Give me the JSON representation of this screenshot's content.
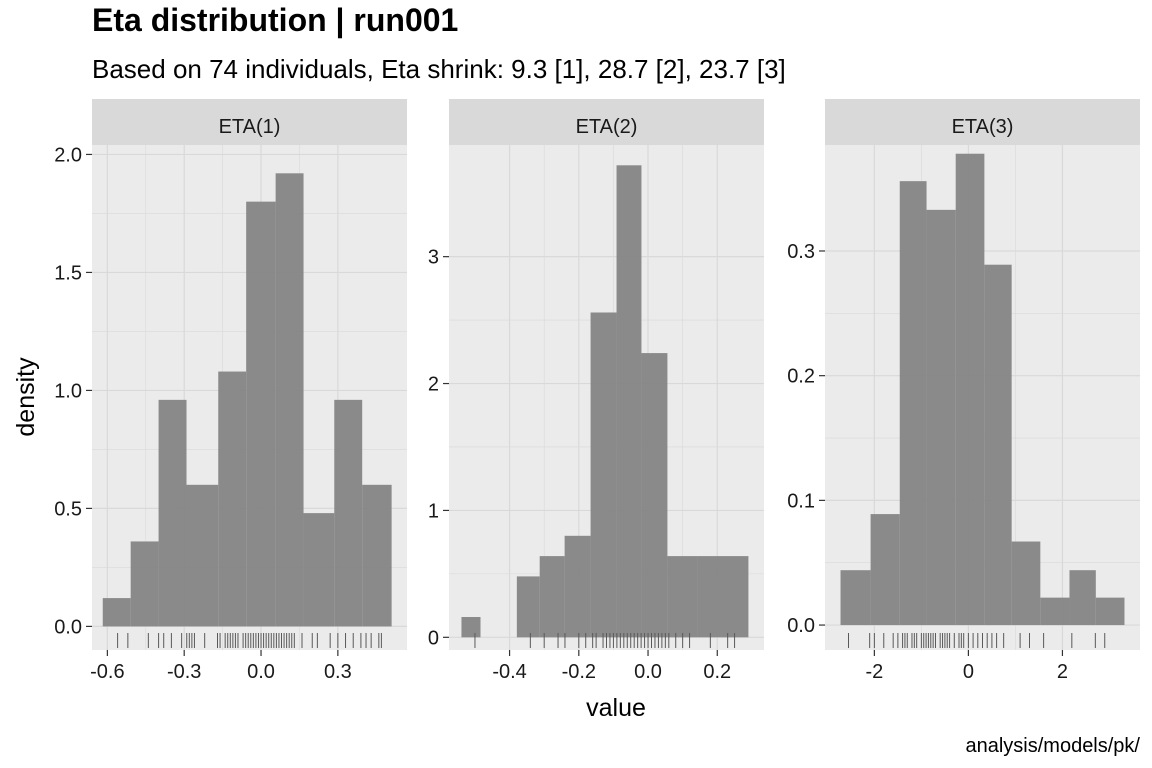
{
  "chart_data": {
    "type": "histogram",
    "title": "Eta distribution | run001",
    "subtitle": "Based on 74 individuals, Eta shrink: 9.3 [1], 28.7 [2], 23.7 [3]",
    "caption": "analysis/models/pk/",
    "xlabel": "value",
    "ylabel": "density",
    "grid": true,
    "colors": {
      "panel_bg": "#ebebeb",
      "grid": "#d9d9d9",
      "strip_bg": "#d9d9d9",
      "bar": "#808080",
      "rug": "#595959"
    },
    "facets": [
      {
        "name": "ETA(1)",
        "xlim": [
          -0.66,
          0.57
        ],
        "ylim": [
          -0.1,
          2.04
        ],
        "x_ticks": [
          -0.6,
          -0.3,
          0.0,
          0.3
        ],
        "x_tick_labels": [
          "-0.6",
          "-0.3",
          "0.0",
          "0.3"
        ],
        "y_ticks": [
          0.0,
          0.5,
          1.0,
          1.5,
          2.0
        ],
        "y_tick_labels": [
          "0.0",
          "0.5",
          "1.0",
          "1.5",
          "2.0"
        ],
        "bins": [
          {
            "x0": -0.618,
            "x1": -0.509,
            "density": 0.12
          },
          {
            "x0": -0.509,
            "x1": -0.4,
            "density": 0.36
          },
          {
            "x0": -0.4,
            "x1": -0.291,
            "density": 0.96
          },
          {
            "x0": -0.291,
            "x1": -0.167,
            "density": 0.6
          },
          {
            "x0": -0.167,
            "x1": -0.058,
            "density": 1.08
          },
          {
            "x0": -0.058,
            "x1": 0.057,
            "density": 1.8
          },
          {
            "x0": 0.057,
            "x1": 0.166,
            "density": 1.92
          },
          {
            "x0": 0.166,
            "x1": 0.286,
            "density": 0.48
          },
          {
            "x0": 0.286,
            "x1": 0.395,
            "density": 0.96
          },
          {
            "x0": 0.395,
            "x1": 0.51,
            "density": 0.6
          }
        ],
        "rug": [
          -0.56,
          -0.52,
          -0.44,
          -0.4,
          -0.38,
          -0.35,
          -0.31,
          -0.29,
          -0.28,
          -0.27,
          -0.26,
          -0.22,
          -0.17,
          -0.16,
          -0.14,
          -0.13,
          -0.12,
          -0.11,
          -0.1,
          -0.09,
          -0.07,
          -0.06,
          -0.05,
          -0.04,
          -0.03,
          -0.02,
          -0.01,
          0.0,
          0.01,
          0.02,
          0.03,
          0.04,
          0.05,
          0.06,
          0.07,
          0.08,
          0.09,
          0.1,
          0.11,
          0.12,
          0.13,
          0.16,
          0.2,
          0.22,
          0.27,
          0.3,
          0.33,
          0.36,
          0.39,
          0.41,
          0.43,
          0.46,
          0.47
        ]
      },
      {
        "name": "ETA(2)",
        "xlim": [
          -0.575,
          0.335
        ],
        "ylim": [
          -0.1,
          3.88
        ],
        "x_ticks": [
          -0.4,
          -0.2,
          0.0,
          0.2
        ],
        "x_tick_labels": [
          "-0.4",
          "-0.2",
          "0.0",
          "0.2"
        ],
        "y_ticks": [
          0,
          1,
          2,
          3
        ],
        "y_tick_labels": [
          "0",
          "1",
          "2",
          "3"
        ],
        "bins": [
          {
            "x0": -0.539,
            "x1": -0.484,
            "density": 0.16
          },
          {
            "x0": -0.484,
            "x1": -0.379,
            "density": 0.0
          },
          {
            "x0": -0.379,
            "x1": -0.313,
            "density": 0.48
          },
          {
            "x0": -0.313,
            "x1": -0.241,
            "density": 0.64
          },
          {
            "x0": -0.241,
            "x1": -0.166,
            "density": 0.8
          },
          {
            "x0": -0.166,
            "x1": -0.091,
            "density": 2.56
          },
          {
            "x0": -0.091,
            "x1": -0.019,
            "density": 3.72
          },
          {
            "x0": -0.019,
            "x1": 0.056,
            "density": 2.24
          },
          {
            "x0": 0.056,
            "x1": 0.143,
            "density": 0.64
          },
          {
            "x0": 0.143,
            "x1": 0.29,
            "density": 0.64
          }
        ],
        "rug": [
          -0.5,
          -0.34,
          -0.3,
          -0.26,
          -0.24,
          -0.2,
          -0.18,
          -0.16,
          -0.15,
          -0.13,
          -0.12,
          -0.11,
          -0.1,
          -0.09,
          -0.08,
          -0.07,
          -0.06,
          -0.05,
          -0.04,
          -0.03,
          -0.02,
          -0.01,
          0.0,
          0.01,
          0.02,
          0.03,
          0.04,
          0.05,
          0.06,
          0.08,
          0.1,
          0.12,
          0.18,
          0.23,
          0.25
        ]
      },
      {
        "name": "ETA(3)",
        "xlim": [
          -3.05,
          3.65
        ],
        "ylim": [
          -0.02,
          0.385
        ],
        "x_ticks": [
          -2,
          0,
          2
        ],
        "x_tick_labels": [
          "-2",
          "0",
          "2"
        ],
        "y_ticks": [
          0.0,
          0.1,
          0.2,
          0.3
        ],
        "y_tick_labels": [
          "0.0",
          "0.1",
          "0.2",
          "0.3"
        ],
        "bins": [
          {
            "x0": -2.72,
            "x1": -2.08,
            "density": 0.044
          },
          {
            "x0": -2.08,
            "x1": -1.46,
            "density": 0.089
          },
          {
            "x0": -1.46,
            "x1": -0.89,
            "density": 0.356
          },
          {
            "x0": -0.89,
            "x1": -0.27,
            "density": 0.333
          },
          {
            "x0": -0.27,
            "x1": 0.34,
            "density": 0.378
          },
          {
            "x0": 0.34,
            "x1": 0.92,
            "density": 0.289
          },
          {
            "x0": 0.92,
            "x1": 1.53,
            "density": 0.067
          },
          {
            "x0": 1.53,
            "x1": 2.15,
            "density": 0.022
          },
          {
            "x0": 2.15,
            "x1": 2.71,
            "density": 0.044
          },
          {
            "x0": 2.71,
            "x1": 3.32,
            "density": 0.022
          }
        ],
        "rug": [
          -2.55,
          -2.1,
          -2.0,
          -1.8,
          -1.6,
          -1.5,
          -1.4,
          -1.35,
          -1.3,
          -1.2,
          -1.15,
          -1.1,
          -1.0,
          -0.95,
          -0.9,
          -0.85,
          -0.8,
          -0.75,
          -0.7,
          -0.6,
          -0.55,
          -0.5,
          -0.45,
          -0.4,
          -0.3,
          -0.2,
          -0.15,
          -0.1,
          0.0,
          0.1,
          0.2,
          0.3,
          0.4,
          0.5,
          0.6,
          0.75,
          1.1,
          1.3,
          1.6,
          2.2,
          2.7,
          2.9
        ]
      }
    ]
  }
}
